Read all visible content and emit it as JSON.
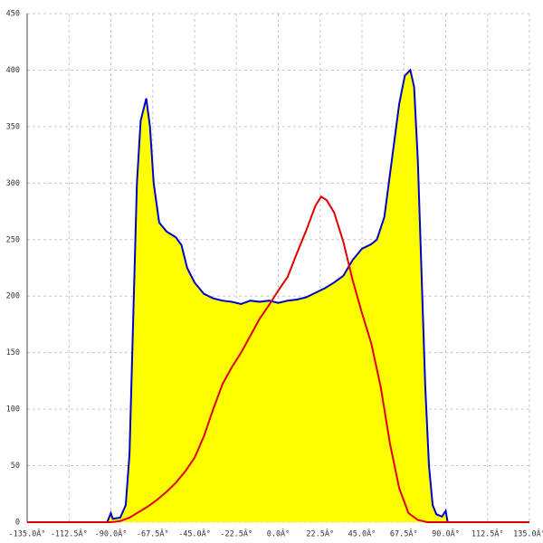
{
  "chart_data": {
    "type": "area",
    "xlim": [
      -135,
      135
    ],
    "ylim": [
      0,
      450
    ],
    "xticks": [
      {
        "value": -135,
        "label": "-135.0Â°"
      },
      {
        "value": -112.5,
        "label": "-112.5Â°"
      },
      {
        "value": -90,
        "label": "-90.0Â°"
      },
      {
        "value": -67.5,
        "label": "-67.5Â°"
      },
      {
        "value": -45,
        "label": "-45.0Â°"
      },
      {
        "value": -22.5,
        "label": "-22.5Â°"
      },
      {
        "value": 0,
        "label": "0.0Â°"
      },
      {
        "value": 22.5,
        "label": "22.5Â°"
      },
      {
        "value": 45,
        "label": "45.0Â°"
      },
      {
        "value": 67.5,
        "label": "67.5Â°"
      },
      {
        "value": 90,
        "label": "90.0Â°"
      },
      {
        "value": 112.5,
        "label": "112.5Â°"
      },
      {
        "value": 135,
        "label": "135.0Â°"
      }
    ],
    "yticks": [
      0,
      50,
      100,
      150,
      200,
      250,
      300,
      350,
      400,
      450
    ],
    "grid": true,
    "series": [
      {
        "color": "#0000cc",
        "fill": "#ffff00",
        "x": [
          -92,
          -90,
          -89,
          -85,
          -82,
          -80,
          -78,
          -76,
          -74,
          -71,
          -69,
          -67,
          -64,
          -60,
          -55,
          -52,
          -49,
          -45,
          -40,
          -35,
          -30,
          -25,
          -20,
          -15,
          -10,
          -5,
          0,
          5,
          10,
          15,
          20,
          25,
          30,
          35,
          40,
          45,
          50,
          53,
          57,
          61,
          65,
          68,
          71,
          73,
          75,
          77,
          79,
          81,
          83,
          85,
          88,
          90,
          91
        ],
        "values": [
          0,
          8,
          3,
          4,
          15,
          60,
          180,
          300,
          355,
          375,
          350,
          300,
          265,
          257,
          252,
          245,
          225,
          212,
          202,
          198,
          196,
          195,
          193,
          196,
          195,
          196,
          194,
          196,
          197,
          199,
          203,
          207,
          212,
          218,
          232,
          242,
          246,
          250,
          270,
          320,
          370,
          395,
          400,
          385,
          320,
          220,
          120,
          50,
          15,
          7,
          5,
          10,
          0
        ]
      },
      {
        "color": "#e00000",
        "x": [
          -135,
          -90,
          -85,
          -80,
          -75,
          -70,
          -65,
          -60,
          -55,
          -50,
          -45,
          -40,
          -35,
          -30,
          -25,
          -20,
          -15,
          -10,
          -5,
          0,
          5,
          10,
          15,
          20,
          23,
          26,
          30,
          35,
          40,
          45,
          50,
          55,
          60,
          65,
          70,
          75,
          80,
          135
        ],
        "values": [
          0,
          0,
          1,
          4,
          9,
          14,
          20,
          27,
          35,
          45,
          57,
          76,
          100,
          122,
          137,
          150,
          165,
          180,
          192,
          205,
          217,
          238,
          258,
          280,
          288,
          285,
          274,
          248,
          214,
          185,
          158,
          120,
          70,
          30,
          8,
          2,
          0,
          0
        ]
      }
    ]
  }
}
